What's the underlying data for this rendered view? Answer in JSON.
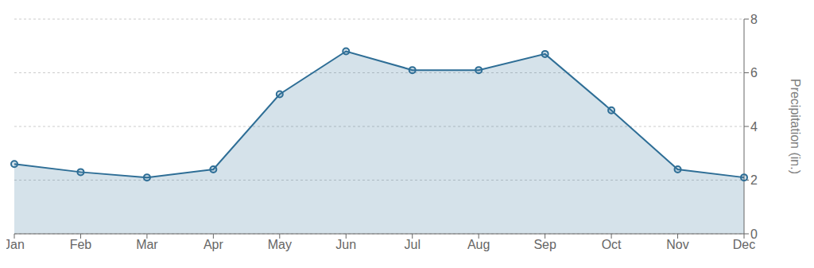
{
  "chart_data": {
    "type": "area",
    "categories": [
      "Jan",
      "Feb",
      "Mar",
      "Apr",
      "May",
      "Jun",
      "Jul",
      "Aug",
      "Sep",
      "Oct",
      "Nov",
      "Dec"
    ],
    "values": [
      2.6,
      2.3,
      2.1,
      2.4,
      5.2,
      6.8,
      6.1,
      6.1,
      6.7,
      4.6,
      2.4,
      2.1
    ],
    "color": "#2e6e96",
    "marker": "circle",
    "ylabel": "Precipitation (in.)",
    "ylim": [
      0,
      8
    ],
    "yticks": [
      0,
      2,
      4,
      6,
      8
    ],
    "grid": true
  }
}
